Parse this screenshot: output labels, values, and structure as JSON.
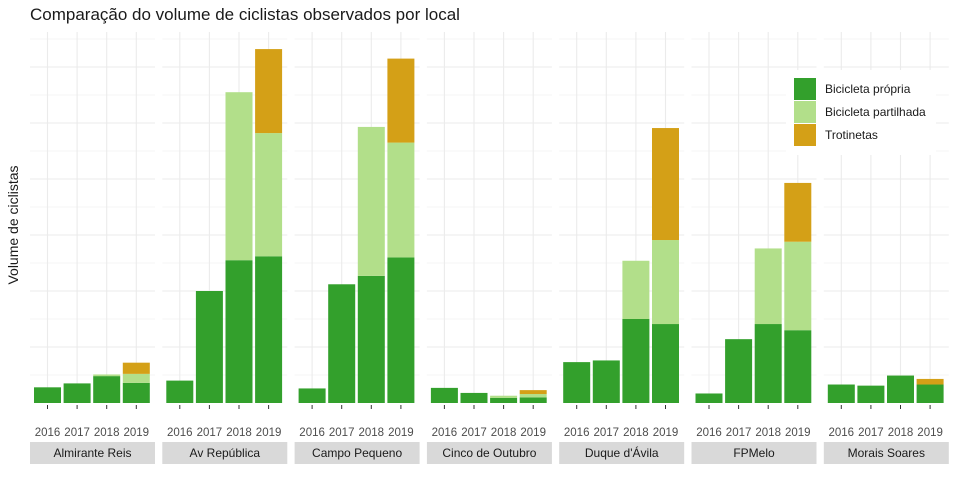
{
  "chart_data": {
    "type": "bar",
    "stacked": true,
    "faceted": true,
    "title": "Comparação do volume de ciclistas observados por local",
    "xlabel": "",
    "ylabel": "Volume de ciclistas",
    "y_tick_labels_shown": false,
    "ylim": [
      0,
      6.6
    ],
    "grid": true,
    "legend_position": "top-right",
    "categories": [
      "2016",
      "2017",
      "2018",
      "2019"
    ],
    "series": [
      {
        "name": "Bicicleta própria",
        "color": "#33a02c"
      },
      {
        "name": "Bicicleta partilhada",
        "color": "#b2df8a"
      },
      {
        "name": "Trotinetas",
        "color": "#d4a017"
      }
    ],
    "panels": [
      {
        "name": "Almirante Reis",
        "values": [
          [
            0.28,
            0,
            0
          ],
          [
            0.35,
            0,
            0
          ],
          [
            0.48,
            0.03,
            0
          ],
          [
            0.36,
            0.16,
            0.2
          ]
        ]
      },
      {
        "name": "Av República",
        "values": [
          [
            0.4,
            0,
            0
          ],
          [
            2.0,
            0,
            0
          ],
          [
            2.55,
            3.0,
            0
          ],
          [
            2.62,
            2.2,
            1.5
          ]
        ]
      },
      {
        "name": "Campo Pequeno",
        "values": [
          [
            0.26,
            0,
            0
          ],
          [
            2.12,
            0,
            0
          ],
          [
            2.27,
            2.66,
            0
          ],
          [
            2.6,
            2.05,
            1.5
          ]
        ]
      },
      {
        "name": "Cinco de Outubro",
        "values": [
          [
            0.27,
            0,
            0
          ],
          [
            0.18,
            0,
            0
          ],
          [
            0.09,
            0.04,
            0
          ],
          [
            0.1,
            0.06,
            0.07
          ]
        ]
      },
      {
        "name": "Duque d'Ávila",
        "values": [
          [
            0.73,
            0,
            0
          ],
          [
            0.76,
            0,
            0
          ],
          [
            1.5,
            1.04,
            0
          ],
          [
            1.41,
            1.5,
            2.0
          ]
        ]
      },
      {
        "name": "FPMelo",
        "values": [
          [
            0.17,
            0,
            0
          ],
          [
            1.14,
            0,
            0
          ],
          [
            1.41,
            1.35,
            0
          ],
          [
            1.3,
            1.58,
            1.05
          ]
        ]
      },
      {
        "name": "Morais Soares",
        "values": [
          [
            0.33,
            0,
            0
          ],
          [
            0.31,
            0,
            0
          ],
          [
            0.49,
            0,
            0
          ],
          [
            0.33,
            0,
            0.1
          ]
        ]
      }
    ]
  }
}
